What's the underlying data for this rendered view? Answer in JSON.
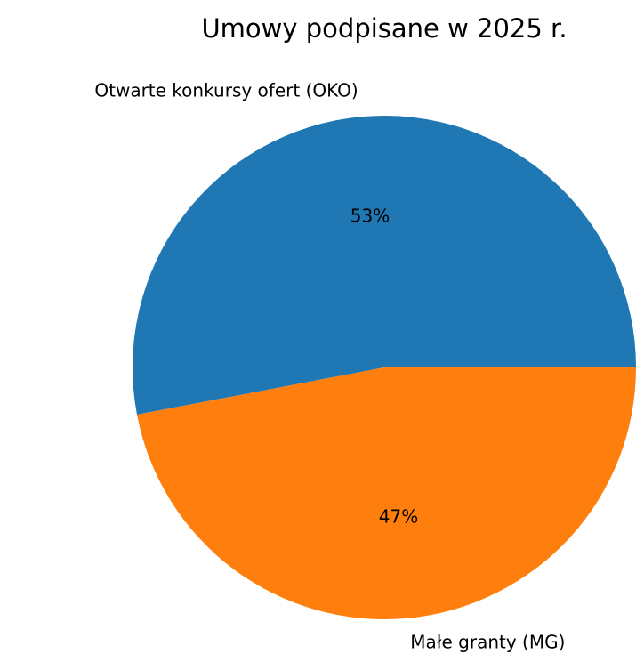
{
  "chart_data": {
    "type": "pie",
    "title": "Umowy podpisane w 2025 r.",
    "categories": [
      "Otwarte konkursy ofert (OKO)",
      "Małe granty (MG)"
    ],
    "values": [
      53,
      47
    ],
    "percent_labels": [
      "53%",
      "47%"
    ],
    "colors": [
      "#1f77b4",
      "#ff7f0e"
    ],
    "legend": "none"
  }
}
